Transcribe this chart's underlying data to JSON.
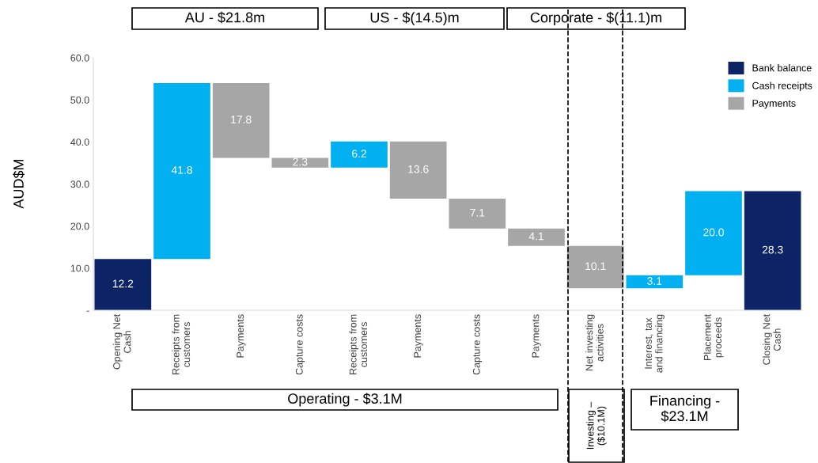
{
  "chart_data": {
    "type": "bar",
    "ylabel": "AUD$M",
    "categories": [
      "Opening Net\nCash",
      "Receipts from\ncustomers",
      "Payments",
      "Capture costs",
      "Receipts from\ncustomers",
      "Payments",
      "Capture costs",
      "Payments",
      "Net investing\nactivities",
      "Interest, tax\nand financing",
      "Placement\nproceeds",
      "Closing Net\nCash"
    ],
    "series": [
      {
        "name": "Bank balance",
        "color": "#0c2466",
        "values": [
          12.2,
          null,
          null,
          null,
          null,
          null,
          null,
          null,
          null,
          null,
          null,
          28.3
        ],
        "base": [
          0,
          null,
          null,
          null,
          null,
          null,
          null,
          null,
          null,
          null,
          null,
          0
        ],
        "value_labels": [
          "12.2",
          null,
          null,
          null,
          null,
          null,
          null,
          null,
          null,
          null,
          null,
          "28.3"
        ]
      },
      {
        "name": "Cash receipts",
        "color": "#00b0f0",
        "values": [
          null,
          41.8,
          null,
          null,
          6.2,
          null,
          null,
          null,
          null,
          3.1,
          20.0,
          null
        ],
        "base": [
          null,
          12.2,
          null,
          null,
          33.9,
          null,
          null,
          null,
          null,
          5.2,
          8.3,
          null
        ],
        "value_labels": [
          null,
          "41.8",
          null,
          null,
          "6.2",
          null,
          null,
          null,
          null,
          "3.1",
          "20.0",
          null
        ]
      },
      {
        "name": "Payments",
        "color": "#a6a6a6",
        "values": [
          null,
          null,
          17.8,
          2.3,
          null,
          13.6,
          7.1,
          4.1,
          10.1,
          null,
          null,
          null
        ],
        "base": [
          null,
          null,
          36.2,
          33.9,
          null,
          26.5,
          19.4,
          15.3,
          5.2,
          null,
          null,
          null
        ],
        "value_labels": [
          null,
          null,
          "17.8",
          "2.3",
          null,
          "13.6",
          "7.1",
          "4.1",
          "10.1",
          null,
          null,
          null
        ]
      }
    ],
    "ylim": [
      0,
      60
    ],
    "yticks": [
      {
        "value": 0,
        "label": "-"
      },
      {
        "value": 10,
        "label": "10.0"
      },
      {
        "value": 20,
        "label": "20.0"
      },
      {
        "value": 30,
        "label": "30.0"
      },
      {
        "value": 40,
        "label": "40.0"
      },
      {
        "value": 50,
        "label": "50.0"
      },
      {
        "value": 60,
        "label": "60.0"
      }
    ],
    "legend": "top right",
    "grid": false,
    "annotations": [
      "AU - $21.8m",
      "US - $(14.5)m",
      "Corporate - $(11.1)m",
      "Operating - $3.1M",
      "Investing –\n($10.1M)",
      "Financing -\n$23.1M"
    ]
  }
}
